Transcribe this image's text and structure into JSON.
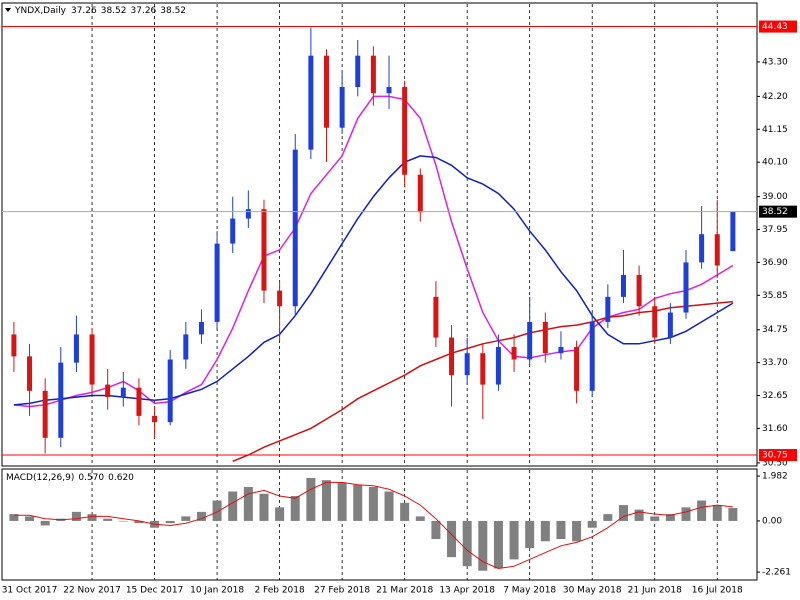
{
  "chart_data": [
    {
      "type": "candlestick",
      "title": "YNDX,Daily",
      "categories": [
        null,
        "31 Oct 2017",
        null,
        null,
        null,
        "22 Nov 2017",
        null,
        null,
        null,
        "15 Dec 2017",
        null,
        null,
        null,
        "10 Jan 2018",
        null,
        null,
        null,
        "2 Feb 2018",
        null,
        null,
        null,
        "27 Feb 2018",
        null,
        null,
        null,
        "21 Mar 2018",
        null,
        null,
        null,
        "13 Apr 2018",
        null,
        null,
        null,
        "7 May 2018",
        null,
        null,
        null,
        "30 May 2018",
        null,
        null,
        null,
        "21 Jun 2018",
        null,
        null,
        null,
        "16 Jul 2018",
        null
      ],
      "open": [
        34.6,
        33.9,
        32.8,
        31.3,
        33.7,
        34.6,
        33.0,
        32.6,
        32.9,
        32.0,
        31.8,
        33.8,
        34.6,
        35.0,
        37.5,
        38.3,
        38.6,
        36.0,
        35.5,
        40.5,
        43.5,
        41.2,
        42.5,
        43.5,
        42.3,
        42.5,
        39.7,
        35.8,
        34.5,
        33.3,
        34.0,
        33.0,
        34.2,
        33.8,
        35.0,
        34.0,
        34.2,
        32.8,
        35.0,
        35.8,
        36.5,
        35.5,
        34.5,
        35.3,
        36.9,
        37.8,
        37.26
      ],
      "high": [
        35.0,
        34.3,
        33.2,
        34.2,
        35.2,
        34.8,
        33.5,
        33.4,
        33.2,
        32.3,
        34.1,
        35.0,
        35.4,
        37.9,
        39.0,
        39.2,
        38.9,
        36.3,
        41.0,
        44.4,
        43.7,
        43.0,
        44.0,
        43.8,
        43.5,
        42.7,
        39.9,
        36.3,
        34.9,
        34.5,
        34.3,
        34.6,
        34.6,
        35.8,
        35.3,
        34.7,
        34.4,
        35.3,
        36.2,
        37.3,
        36.8,
        35.8,
        35.6,
        37.3,
        38.7,
        38.9,
        38.52
      ],
      "low": [
        33.4,
        32.0,
        30.8,
        31.0,
        33.4,
        32.7,
        32.2,
        32.3,
        31.7,
        31.3,
        31.7,
        33.5,
        34.3,
        34.8,
        37.2,
        38.0,
        35.6,
        34.4,
        35.2,
        40.2,
        40.1,
        41.0,
        42.2,
        41.9,
        41.8,
        39.3,
        38.2,
        34.2,
        32.3,
        33.0,
        31.9,
        32.8,
        33.4,
        33.6,
        33.7,
        33.8,
        32.4,
        32.6,
        34.8,
        35.6,
        35.2,
        34.3,
        34.3,
        35.1,
        36.7,
        36.4,
        37.26
      ],
      "close": [
        33.9,
        32.8,
        31.3,
        33.7,
        34.6,
        33.0,
        32.6,
        32.9,
        32.0,
        31.8,
        33.8,
        34.6,
        35.0,
        37.5,
        38.3,
        38.6,
        36.0,
        35.5,
        40.5,
        43.5,
        41.2,
        42.5,
        43.5,
        42.3,
        42.5,
        39.7,
        38.5,
        34.5,
        33.3,
        34.0,
        33.0,
        34.2,
        33.8,
        35.0,
        34.0,
        34.2,
        32.8,
        35.0,
        35.8,
        36.5,
        35.5,
        34.5,
        35.3,
        36.9,
        37.8,
        36.8,
        38.52
      ],
      "up_color": "#1f3fd6",
      "down_color": "#d81515",
      "series": [
        {
          "color": "#e020e0",
          "values": [
            32.35,
            32.3,
            32.35,
            32.5,
            32.65,
            32.75,
            32.9,
            33.1,
            32.8,
            32.4,
            32.45,
            32.75,
            33.0,
            33.8,
            34.8,
            36.0,
            37.1,
            37.3,
            38.0,
            39.1,
            39.7,
            40.3,
            41.5,
            42.2,
            42.2,
            42.1,
            41.5,
            40.0,
            38.2,
            36.7,
            35.3,
            34.4,
            33.9,
            33.85,
            33.95,
            34.05,
            34.1,
            34.8,
            35.15,
            35.3,
            35.4,
            35.75,
            35.9,
            36.0,
            36.2,
            36.5,
            36.8
          ]
        },
        {
          "color": "#1020c0",
          "values": [
            32.35,
            32.4,
            32.5,
            32.55,
            32.6,
            32.65,
            32.65,
            32.6,
            32.55,
            32.5,
            32.55,
            32.7,
            32.85,
            33.1,
            33.5,
            33.9,
            34.35,
            34.6,
            35.2,
            35.9,
            36.7,
            37.5,
            38.3,
            39.0,
            39.6,
            40.1,
            40.3,
            40.25,
            40.0,
            39.6,
            39.4,
            39.1,
            38.6,
            37.9,
            37.3,
            36.6,
            36.0,
            35.2,
            34.6,
            34.3,
            34.3,
            34.4,
            34.5,
            34.7,
            35.0,
            35.3,
            35.6
          ]
        },
        {
          "color": "#d01010",
          "values": [
            null,
            null,
            null,
            null,
            null,
            null,
            null,
            null,
            null,
            null,
            null,
            null,
            null,
            null,
            30.55,
            30.75,
            31.0,
            31.2,
            31.4,
            31.6,
            31.9,
            32.2,
            32.55,
            32.8,
            33.05,
            33.3,
            33.6,
            33.8,
            34.0,
            34.15,
            34.3,
            34.4,
            34.5,
            34.65,
            34.75,
            34.85,
            34.9,
            35.0,
            35.15,
            35.2,
            35.3,
            35.35,
            35.45,
            35.5,
            35.55,
            35.6,
            35.65
          ]
        }
      ],
      "levels": [
        {
          "value": 44.43,
          "color": "#ff0000"
        },
        {
          "value": 30.75,
          "color": "#ff0000"
        }
      ],
      "ylim": [
        30.4,
        45.15
      ],
      "yticks": [
        {
          "value": 43.3,
          "label": "43.30"
        },
        {
          "value": 42.2,
          "label": "42.20"
        },
        41.15,
        {
          "value": 40.1,
          "label": "40.10"
        },
        {
          "value": 39,
          "label": "39.00"
        },
        37.95,
        {
          "value": 36.9,
          "label": "36.90"
        },
        35.85,
        34.75,
        {
          "value": 33.7,
          "label": "33.70"
        },
        32.65,
        {
          "value": 31.6,
          "label": "31.60"
        },
        {
          "value": 30.5,
          "label": "30.50"
        }
      ],
      "grid": true
    },
    {
      "type": "macd",
      "title": "MACD(12,26,9)",
      "readout": [
        {
          "value": 0.57,
          "label": "0.570"
        },
        {
          "value": 0.62,
          "label": "0.620"
        }
      ],
      "histogram": {
        "color": "#808080",
        "values": [
          0.3,
          0.2,
          -0.2,
          0.1,
          0.4,
          0.3,
          0.1,
          0.0,
          -0.1,
          -0.3,
          -0.1,
          0.2,
          0.4,
          0.9,
          1.3,
          1.5,
          1.2,
          0.6,
          1.1,
          1.9,
          1.8,
          1.7,
          1.6,
          1.5,
          1.3,
          0.8,
          0.2,
          -0.8,
          -1.6,
          -2.0,
          -2.2,
          -2.1,
          -1.7,
          -1.2,
          -0.9,
          -0.8,
          -0.9,
          -0.3,
          0.3,
          0.7,
          0.5,
          0.2,
          0.3,
          0.6,
          0.9,
          0.7,
          0.57
        ]
      },
      "signal": {
        "color": "#e01010",
        "values": [
          0.25,
          0.25,
          0.1,
          0.05,
          0.1,
          0.2,
          0.2,
          0.1,
          0.0,
          -0.15,
          -0.2,
          -0.1,
          0.1,
          0.4,
          0.8,
          1.2,
          1.35,
          1.1,
          1.0,
          1.4,
          1.7,
          1.7,
          1.6,
          1.55,
          1.4,
          1.1,
          0.7,
          0.1,
          -0.6,
          -1.3,
          -1.8,
          -2.1,
          -2.0,
          -1.7,
          -1.4,
          -1.1,
          -0.95,
          -0.7,
          -0.3,
          0.2,
          0.4,
          0.3,
          0.25,
          0.4,
          0.6,
          0.7,
          0.62
        ]
      },
      "ylim": [
        -2.61,
        2.25
      ],
      "yticks": [
        1.982,
        {
          "value": 0,
          "label": "0.00"
        },
        -2.261
      ],
      "grid": true
    }
  ]
}
